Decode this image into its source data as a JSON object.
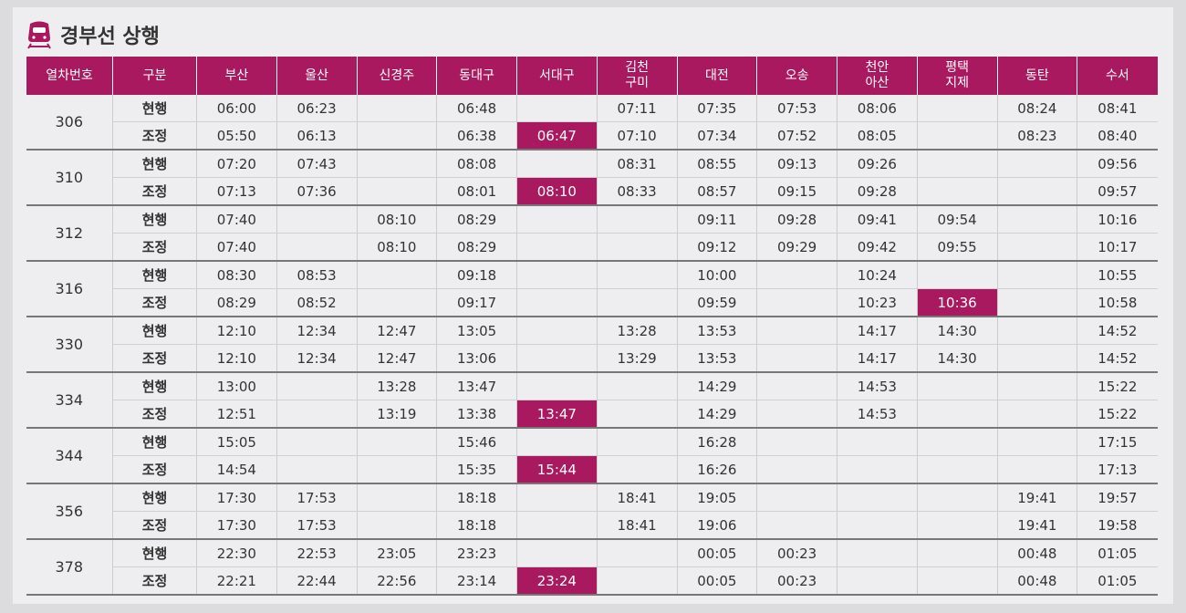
{
  "title": "경부선 상행",
  "columns": [
    "열차번호",
    "구분",
    "부산",
    "울산",
    "신경주",
    "동대구",
    "서대구",
    [
      "김천",
      "구미"
    ],
    "대전",
    "오송",
    [
      "천안",
      "아산"
    ],
    [
      "평택",
      "지제"
    ],
    "동탄",
    "수서"
  ],
  "highlight_color": "#a8195f",
  "trains": [
    {
      "number": "306",
      "rows": [
        {
          "type": "현행",
          "times": [
            "06:00",
            "06:23",
            null,
            "06:48",
            null,
            "07:11",
            "07:35",
            "07:53",
            "08:06",
            null,
            "08:24",
            "08:41"
          ]
        },
        {
          "type": "조정",
          "times": [
            "05:50",
            "06:13",
            null,
            "06:38",
            "06:47",
            "07:10",
            "07:34",
            "07:52",
            "08:05",
            null,
            "08:23",
            "08:40"
          ],
          "highlighted": [
            4
          ]
        }
      ]
    },
    {
      "number": "310",
      "rows": [
        {
          "type": "현행",
          "times": [
            "07:20",
            "07:43",
            null,
            "08:08",
            null,
            "08:31",
            "08:55",
            "09:13",
            "09:26",
            null,
            null,
            "09:56"
          ]
        },
        {
          "type": "조정",
          "times": [
            "07:13",
            "07:36",
            null,
            "08:01",
            "08:10",
            "08:33",
            "08:57",
            "09:15",
            "09:28",
            null,
            null,
            "09:57"
          ],
          "highlighted": [
            4
          ]
        }
      ]
    },
    {
      "number": "312",
      "rows": [
        {
          "type": "현행",
          "times": [
            "07:40",
            null,
            "08:10",
            "08:29",
            null,
            null,
            "09:11",
            "09:28",
            "09:41",
            "09:54",
            null,
            "10:16"
          ]
        },
        {
          "type": "조정",
          "times": [
            "07:40",
            null,
            "08:10",
            "08:29",
            null,
            null,
            "09:12",
            "09:29",
            "09:42",
            "09:55",
            null,
            "10:17"
          ]
        }
      ]
    },
    {
      "number": "316",
      "rows": [
        {
          "type": "현행",
          "times": [
            "08:30",
            "08:53",
            null,
            "09:18",
            null,
            null,
            "10:00",
            null,
            "10:24",
            null,
            null,
            "10:55"
          ]
        },
        {
          "type": "조정",
          "times": [
            "08:29",
            "08:52",
            null,
            "09:17",
            null,
            null,
            "09:59",
            null,
            "10:23",
            "10:36",
            null,
            "10:58"
          ],
          "highlighted": [
            9
          ]
        }
      ]
    },
    {
      "number": "330",
      "rows": [
        {
          "type": "현행",
          "times": [
            "12:10",
            "12:34",
            "12:47",
            "13:05",
            null,
            "13:28",
            "13:53",
            null,
            "14:17",
            "14:30",
            null,
            "14:52"
          ]
        },
        {
          "type": "조정",
          "times": [
            "12:10",
            "12:34",
            "12:47",
            "13:06",
            null,
            "13:29",
            "13:53",
            null,
            "14:17",
            "14:30",
            null,
            "14:52"
          ]
        }
      ]
    },
    {
      "number": "334",
      "rows": [
        {
          "type": "현행",
          "times": [
            "13:00",
            null,
            "13:28",
            "13:47",
            null,
            null,
            "14:29",
            null,
            "14:53",
            null,
            null,
            "15:22"
          ]
        },
        {
          "type": "조정",
          "times": [
            "12:51",
            null,
            "13:19",
            "13:38",
            "13:47",
            null,
            "14:29",
            null,
            "14:53",
            null,
            null,
            "15:22"
          ],
          "highlighted": [
            4
          ]
        }
      ]
    },
    {
      "number": "344",
      "rows": [
        {
          "type": "현행",
          "times": [
            "15:05",
            null,
            null,
            "15:46",
            null,
            null,
            "16:28",
            null,
            null,
            null,
            null,
            "17:15"
          ]
        },
        {
          "type": "조정",
          "times": [
            "14:54",
            null,
            null,
            "15:35",
            "15:44",
            null,
            "16:26",
            null,
            null,
            null,
            null,
            "17:13"
          ],
          "highlighted": [
            4
          ]
        }
      ]
    },
    {
      "number": "356",
      "rows": [
        {
          "type": "현행",
          "times": [
            "17:30",
            "17:53",
            null,
            "18:18",
            null,
            "18:41",
            "19:05",
            null,
            null,
            null,
            "19:41",
            "19:57"
          ]
        },
        {
          "type": "조정",
          "times": [
            "17:30",
            "17:53",
            null,
            "18:18",
            null,
            "18:41",
            "19:06",
            null,
            null,
            null,
            "19:41",
            "19:58"
          ]
        }
      ]
    },
    {
      "number": "378",
      "rows": [
        {
          "type": "현행",
          "times": [
            "22:30",
            "22:53",
            "23:05",
            "23:23",
            null,
            null,
            "00:05",
            "00:23",
            null,
            null,
            "00:48",
            "01:05"
          ]
        },
        {
          "type": "조정",
          "times": [
            "22:21",
            "22:44",
            "22:56",
            "23:14",
            "23:24",
            null,
            "00:05",
            "00:23",
            null,
            null,
            "00:48",
            "01:05"
          ],
          "highlighted": [
            4
          ]
        }
      ]
    }
  ]
}
